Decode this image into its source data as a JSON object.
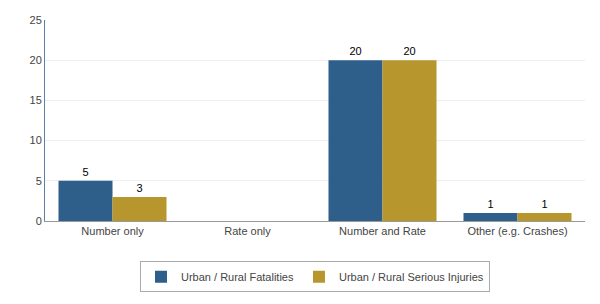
{
  "chart_data": {
    "type": "bar",
    "categories": [
      "Number only",
      "Rate only",
      "Number and Rate",
      "Other (e.g. Crashes)"
    ],
    "series": [
      {
        "name": "Urban / Rural Fatalities",
        "color": "#2E5F8A",
        "values": [
          5,
          0,
          20,
          1
        ],
        "value_labels": [
          "5",
          null,
          "20",
          "1"
        ]
      },
      {
        "name": "Urban / Rural Serious Injuries",
        "color": "#B8962E",
        "values": [
          3,
          0,
          20,
          1
        ],
        "value_labels": [
          "3",
          null,
          "20",
          "1"
        ]
      }
    ],
    "ylim": [
      0,
      25
    ],
    "yticks": [
      0,
      5,
      10,
      15,
      20,
      25
    ],
    "grid": true,
    "legend": "bottom",
    "data_labels": true
  }
}
